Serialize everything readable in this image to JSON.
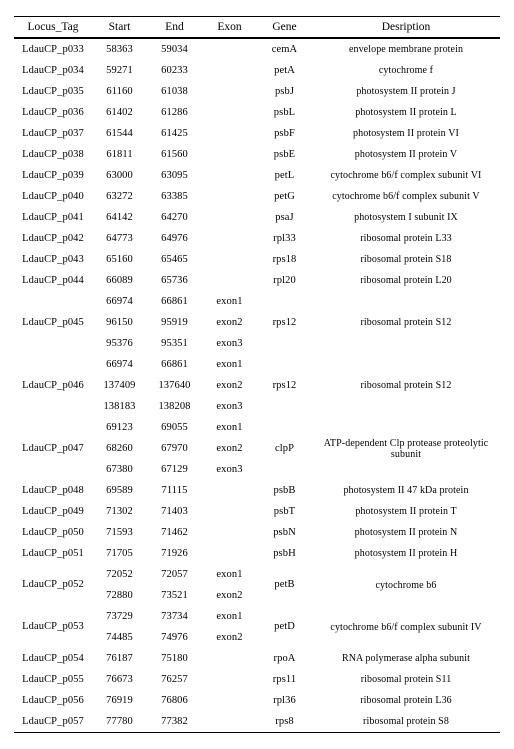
{
  "columns": [
    "Locus_Tag",
    "Start",
    "End",
    "Exon",
    "Gene",
    "Desription"
  ],
  "rows": [
    [
      "LdauCP_p033",
      "58363",
      "59034",
      "",
      "cemA",
      "envelope membrane protein"
    ],
    [
      "LdauCP_p034",
      "59271",
      "60233",
      "",
      "petA",
      "cytochrome f"
    ],
    [
      "LdauCP_p035",
      "61160",
      "61038",
      "",
      "psbJ",
      "photosystem II protein J"
    ],
    [
      "LdauCP_p036",
      "61402",
      "61286",
      "",
      "psbL",
      "photosystem II protein L"
    ],
    [
      "LdauCP_p037",
      "61544",
      "61425",
      "",
      "psbF",
      "photosystem II protein VI"
    ],
    [
      "LdauCP_p038",
      "61811",
      "61560",
      "",
      "psbE",
      "photosystem II protein V"
    ],
    [
      "LdauCP_p039",
      "63000",
      "63095",
      "",
      "petL",
      "cytochrome b6/f complex subunit VI"
    ],
    [
      "LdauCP_p040",
      "63272",
      "63385",
      "",
      "petG",
      "cytochrome b6/f complex subunit V"
    ],
    [
      "LdauCP_p041",
      "64142",
      "64270",
      "",
      "psaJ",
      "photosystem I subunit IX"
    ],
    [
      "LdauCP_p042",
      "64773",
      "64976",
      "",
      "rpl33",
      "ribosomal protein L33"
    ],
    [
      "LdauCP_p043",
      "65160",
      "65465",
      "",
      "rps18",
      "ribosomal protein S18"
    ],
    [
      "LdauCP_p044",
      "66089",
      "65736",
      "",
      "rpl20",
      "ribosomal protein L20"
    ],
    [
      "",
      "66974",
      "66861",
      "exon1",
      "",
      ""
    ],
    [
      "LdauCP_p045",
      "96150",
      "95919",
      "exon2",
      "rps12",
      "ribosomal protein S12"
    ],
    [
      "",
      "95376",
      "95351",
      "exon3",
      "",
      ""
    ],
    [
      "",
      "66974",
      "66861",
      "exon1",
      "",
      ""
    ],
    [
      "LdauCP_p046",
      "137409",
      "137640",
      "exon2",
      "rps12",
      "ribosomal protein S12"
    ],
    [
      "",
      "138183",
      "138208",
      "exon3",
      "",
      ""
    ],
    [
      "",
      "69123",
      "69055",
      "exon1",
      "",
      ""
    ],
    [
      "LdauCP_p047",
      "68260",
      "67970",
      "exon2",
      "clpP",
      "ATP-dependent Clp protease proteolytic subunit"
    ],
    [
      "",
      "67380",
      "67129",
      "exon3",
      "",
      ""
    ],
    [
      "LdauCP_p048",
      "69589",
      "71115",
      "",
      "psbB",
      "photosystem II 47 kDa protein"
    ],
    [
      "LdauCP_p049",
      "71302",
      "71403",
      "",
      "psbT",
      "photosystem II protein T"
    ],
    [
      "LdauCP_p050",
      "71593",
      "71462",
      "",
      "psbN",
      "photosystem II protein N"
    ],
    [
      "LdauCP_p051",
      "71705",
      "71926",
      "",
      "psbH",
      "photosystem II protein H"
    ],
    [
      "",
      "72052",
      "72057",
      "exon1",
      "",
      ""
    ],
    [
      "LdauCP_p052",
      "72880",
      "73521",
      "exon2",
      "petB",
      "cytochrome b6"
    ],
    [
      "",
      "73729",
      "73734",
      "exon1",
      "",
      ""
    ],
    [
      "LdauCP_p053",
      "74485",
      "74976",
      "exon2",
      "petD",
      "cytochrome b6/f complex subunit IV"
    ],
    [
      "LdauCP_p054",
      "76187",
      "75180",
      "",
      "rpoA",
      "RNA polymerase alpha subunit"
    ],
    [
      "LdauCP_p055",
      "76673",
      "76257",
      "",
      "rps11",
      "ribosomal protein S11"
    ],
    [
      "LdauCP_p056",
      "76919",
      "76806",
      "",
      "rpl36",
      "ribosomal protein L36"
    ],
    [
      "LdauCP_p057",
      "77780",
      "77382",
      "",
      "rps8",
      "ribosomal protein S8"
    ]
  ],
  "merges": [
    {
      "col": 0,
      "start": 12,
      "span": 3
    },
    {
      "col": 4,
      "start": 12,
      "span": 3
    },
    {
      "col": 5,
      "start": 12,
      "span": 3
    },
    {
      "col": 0,
      "start": 15,
      "span": 3
    },
    {
      "col": 4,
      "start": 15,
      "span": 3
    },
    {
      "col": 5,
      "start": 15,
      "span": 3
    },
    {
      "col": 0,
      "start": 18,
      "span": 3
    },
    {
      "col": 4,
      "start": 18,
      "span": 3
    },
    {
      "col": 5,
      "start": 18,
      "span": 3
    },
    {
      "col": 0,
      "start": 25,
      "span": 2
    },
    {
      "col": 4,
      "start": 25,
      "span": 2
    },
    {
      "col": 5,
      "start": 25,
      "span": 2
    },
    {
      "col": 0,
      "start": 27,
      "span": 2
    },
    {
      "col": 4,
      "start": 27,
      "span": 2
    },
    {
      "col": 5,
      "start": 27,
      "span": 2
    }
  ]
}
